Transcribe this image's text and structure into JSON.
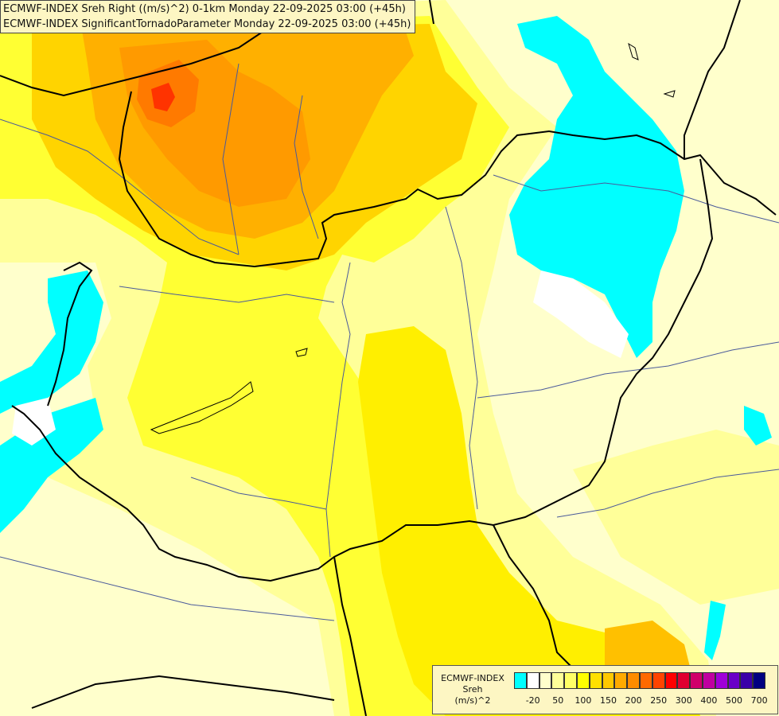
{
  "header": {
    "line1": "ECMWF-INDEX Sreh Right ((m/s)^2) 0-1km Monday 22-09-2025 03:00 (+45h)",
    "line2": "ECMWF-INDEX SignificantTornadoParameter Monday 22-09-2025 03:00 (+45h)"
  },
  "legend": {
    "title1": "ECMWF-INDEX",
    "title2": "Sreh",
    "unit": "(m/s)^2",
    "colors": [
      "#00ffff",
      "#ffffff",
      "#ffffcc",
      "#ffff99",
      "#ffff66",
      "#ffff00",
      "#ffe000",
      "#ffc800",
      "#ffaa00",
      "#ff8c00",
      "#ff6a00",
      "#ff4400",
      "#ff0000",
      "#e00030",
      "#d0006a",
      "#c000a0",
      "#a000d8",
      "#6a00c8",
      "#3a00a8",
      "#000080"
    ],
    "ticks": [
      "-20",
      "50",
      "100",
      "150",
      "200",
      "250",
      "300",
      "400",
      "500",
      "700"
    ]
  },
  "colors": {
    "cyan": "#00ffff",
    "pale": "#ffffcc",
    "light_yellow": "#ffff99",
    "yellow": "#ffff00",
    "gold": "#ffd800",
    "orange": "#ffa500",
    "dark_orange": "#ff8c00",
    "red": "#ff3300",
    "border": "#000000",
    "river": "#4a5a9a"
  }
}
